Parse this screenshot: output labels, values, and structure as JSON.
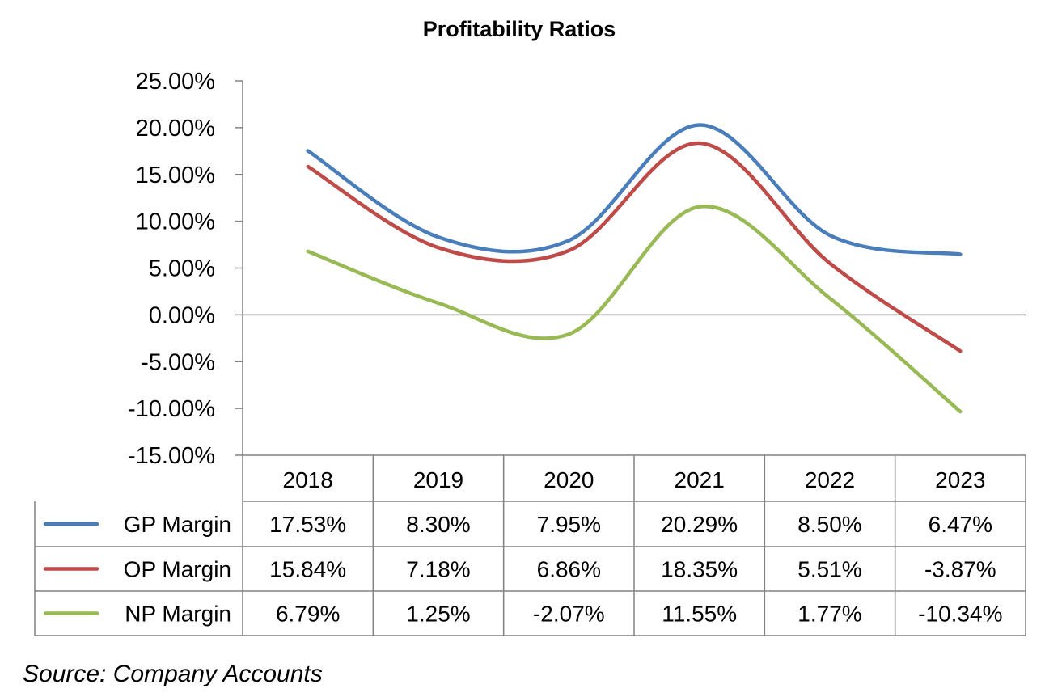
{
  "chart_data": {
    "type": "line",
    "title": "Profitability Ratios",
    "categories": [
      "2018",
      "2019",
      "2020",
      "2021",
      "2022",
      "2023"
    ],
    "y_ticks": [
      "25.00%",
      "20.00%",
      "15.00%",
      "10.00%",
      "5.00%",
      "0.00%",
      "-5.00%",
      "-10.00%",
      "-15.00%"
    ],
    "ylim": [
      -15,
      25
    ],
    "y_step": 5,
    "smooth": true,
    "legend_placement": "data-table-below",
    "series": [
      {
        "name": "GP Margin",
        "color": "#4a7ebb",
        "values": [
          17.53,
          8.3,
          7.95,
          20.29,
          8.5,
          6.47
        ],
        "labels": [
          "17.53%",
          "8.30%",
          "7.95%",
          "20.29%",
          "8.50%",
          "6.47%"
        ]
      },
      {
        "name": "OP Margin",
        "color": "#be4b48",
        "values": [
          15.84,
          7.18,
          6.86,
          18.35,
          5.51,
          -3.87
        ],
        "labels": [
          "15.84%",
          "7.18%",
          "6.86%",
          "18.35%",
          "5.51%",
          "-3.87%"
        ]
      },
      {
        "name": "NP Margin",
        "color": "#98b954",
        "values": [
          6.79,
          1.25,
          -2.07,
          11.55,
          1.77,
          -10.34
        ],
        "labels": [
          "6.79%",
          "1.25%",
          "-2.07%",
          "11.55%",
          "1.77%",
          "-10.34%"
        ]
      }
    ]
  },
  "source_note": "Source: Company Accounts"
}
